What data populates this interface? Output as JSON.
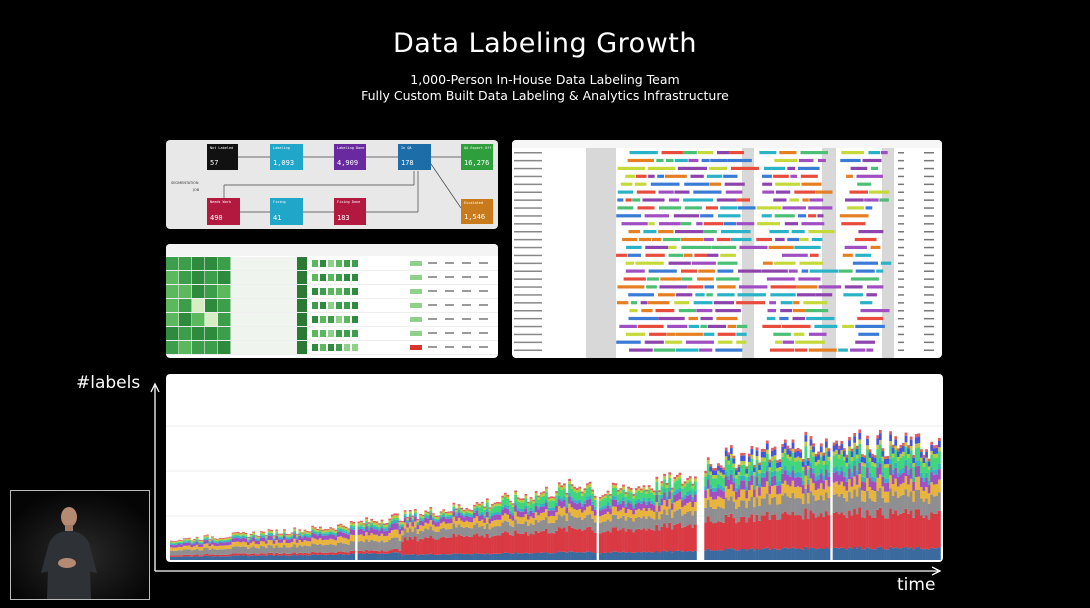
{
  "slide": {
    "title": "Data Labeling Growth",
    "subtitle_line1": "1,000-Person In-House Data Labeling Team",
    "subtitle_line2": "Fully Custom Built Data Labeling & Analytics Infrastructure"
  },
  "pipeline": {
    "side_label_1": "SEGMENTATION",
    "side_label_2": "JOB",
    "nodes": [
      {
        "name": "Not Labeled",
        "value": "57",
        "color": "#111111"
      },
      {
        "name": "Labeling",
        "value": "1,093",
        "color": "#1fa6c9"
      },
      {
        "name": "Labeling Done",
        "value": "4,909",
        "color": "#6a2a9f"
      },
      {
        "name": "In QA",
        "value": "178",
        "color": "#1d6ea8"
      },
      {
        "name": "QA Export Off",
        "value": "16,276",
        "color": "#2f9e3c"
      },
      {
        "name": "Needs Work",
        "value": "490",
        "color": "#b3183f"
      },
      {
        "name": "Fixing",
        "value": "41",
        "color": "#1fa6c9"
      },
      {
        "name": "Fixing Done",
        "value": "183",
        "color": "#b3183f"
      },
      {
        "name": "Escalated",
        "value": "1,546",
        "color": "#c97a1a"
      }
    ]
  },
  "chart_data": {
    "type": "area",
    "title": "",
    "xlabel": "time",
    "ylabel": "#labels",
    "stacked": true,
    "grid": true,
    "series_colors": [
      "#3a6a9e",
      "#d93a43",
      "#8f8f92",
      "#e8b43b",
      "#a04fc2",
      "#35b3c4",
      "#42d67a",
      "#c2c83d",
      "#4456e0",
      "#e06060"
    ]
  },
  "axes": {
    "y_label": "#labels",
    "x_label": "time"
  },
  "colors": {
    "background": "#000000",
    "text": "#ffffff"
  }
}
